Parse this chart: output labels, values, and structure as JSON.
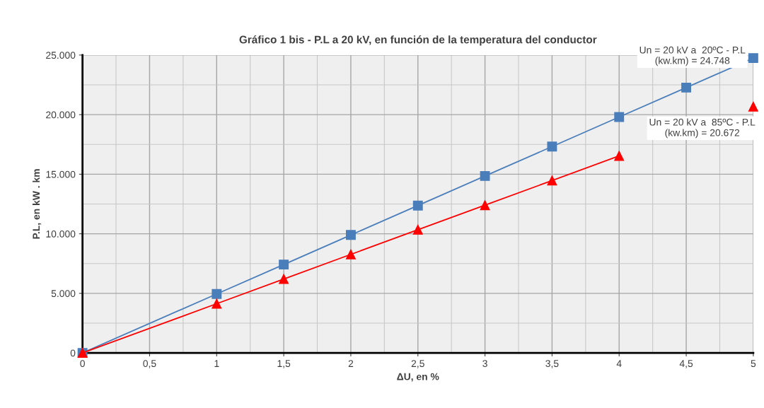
{
  "chart_data": {
    "type": "line",
    "title": "Gráfico 1 bis - P.L a 20 kV, en función de la temperatura del conductor",
    "xlabel": "ΔU, en %",
    "ylabel": "P.L, en kW . km",
    "x": [
      0,
      1,
      1.5,
      2,
      2.5,
      3,
      3.5,
      4,
      4.5,
      5
    ],
    "series": [
      {
        "color": "#4a7ebb",
        "marker": "square",
        "values": [
          0,
          4950,
          7420,
          9900,
          12370,
          14850,
          17320,
          19800,
          22270,
          24750
        ]
      },
      {
        "color": "#ff0000",
        "marker": "triangle",
        "values": [
          0,
          4130,
          6200,
          8270,
          10340,
          12400,
          14470,
          16540,
          null,
          20670
        ]
      }
    ],
    "annotations": [
      {
        "text": "Un = 20 kV a  20ºC - P.L\n(kw.km) = 24.748",
        "x": 5,
        "y": 24748
      },
      {
        "text": "Un = 20 kV a  85ºC - P.L\n(kw.km) = 20.672",
        "x": 5,
        "y": 20672
      }
    ],
    "xlim": [
      0,
      5
    ],
    "xticks": [
      0,
      {
        "value": 0.5,
        "label": "0,5"
      },
      1,
      {
        "value": 1.5,
        "label": "1,5"
      },
      2,
      {
        "value": 2.5,
        "label": "2,5"
      },
      3,
      {
        "value": 3.5,
        "label": "3,5"
      },
      4,
      {
        "value": 4.5,
        "label": "4,5"
      },
      5
    ],
    "ylim": [
      0,
      25000
    ],
    "yticks": [
      0,
      {
        "value": 5000,
        "label": "5.000"
      },
      {
        "value": 10000,
        "label": "10.000"
      },
      {
        "value": 15000,
        "label": "15.000"
      },
      {
        "value": 20000,
        "label": "20.000"
      },
      {
        "value": 25000,
        "label": "25.000"
      }
    ],
    "grid": true,
    "legend": false,
    "line_style": "solid"
  }
}
